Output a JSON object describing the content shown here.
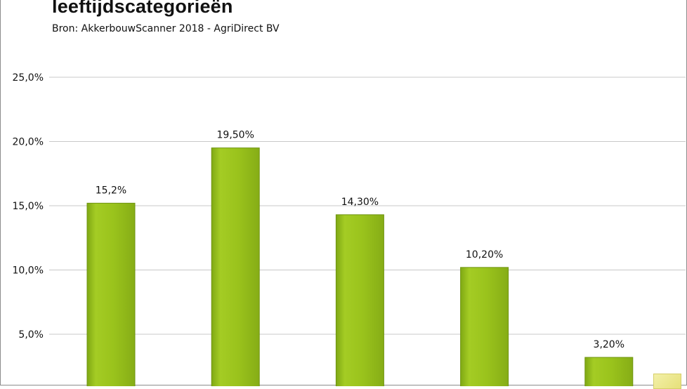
{
  "title": "leeftijdscategorieën",
  "subtitle": "Bron: AkkerbouwScanner 2018 - AgriDirect BV",
  "colors": {
    "bar": "#9ac31c",
    "bar_edge": "#6f9410",
    "grid": "#c8c8c8",
    "text": "#111111"
  },
  "chart_data": {
    "type": "bar",
    "categories": [
      "",
      "",
      "",
      "",
      ""
    ],
    "values": [
      15.2,
      19.5,
      14.3,
      10.2,
      3.2
    ],
    "data_labels": [
      "15,2%",
      "19,50%",
      "14,30%",
      "10,20%",
      "3,20%"
    ],
    "yticks": [
      5,
      10,
      15,
      20,
      25
    ],
    "ytick_labels": [
      "5,0%",
      "10,0%",
      "15,0%",
      "20,0%",
      "25,0%"
    ],
    "ylim": [
      0,
      25
    ],
    "grid": true,
    "title": "leeftijdscategorieën",
    "xlabel": "",
    "ylabel": ""
  }
}
